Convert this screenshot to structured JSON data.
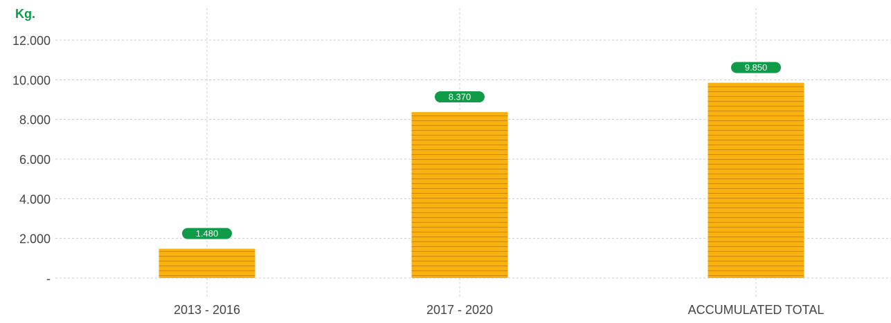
{
  "chart_data": {
    "type": "bar",
    "unit_label": "Kg.",
    "categories": [
      "2013 - 2016",
      "2017 - 2020",
      "ACCUMULATED TOTAL"
    ],
    "values": [
      1480,
      8370,
      9850
    ],
    "data_labels": [
      "1.480",
      "8.370",
      "9.850"
    ],
    "ylim": [
      0,
      12000
    ],
    "y_ticks": [
      {
        "value": 0,
        "label": "-"
      },
      {
        "value": 2000,
        "label": "2.000"
      },
      {
        "value": 4000,
        "label": "4.000"
      },
      {
        "value": 6000,
        "label": "6.000"
      },
      {
        "value": 8000,
        "label": "8.000"
      },
      {
        "value": 10000,
        "label": "10.000"
      },
      {
        "value": 12000,
        "label": "12.000"
      }
    ],
    "grid": true,
    "colors": {
      "bar_fill": "#f8b10f",
      "bar_stripe": "#c8860a",
      "label_badge": "#0f9b48",
      "label_text": "#ffffff",
      "axis_text": "#444444",
      "grid": "#cccccc",
      "unit_label": "#0f9b48"
    }
  }
}
